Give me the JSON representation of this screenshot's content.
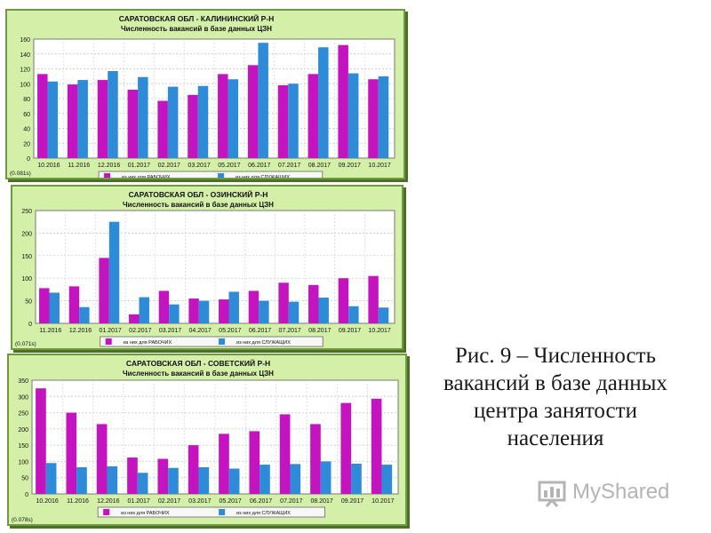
{
  "legend": {
    "series1": "из них для РАБОЧИХ",
    "series2": "из них для СЛУЖАЩИХ"
  },
  "caption": {
    "line1": "Рис. 9 – Численность",
    "line2": "вакансий в базе данных",
    "line3": "центра занятости",
    "line4": "населения"
  },
  "logo": {
    "text": "MyShared"
  },
  "colors": {
    "series1": "#c414c0",
    "series2": "#2e8bd8",
    "panel_bg": "#d4f0a8",
    "plot_bg": "#ffffff"
  },
  "chart_data": [
    {
      "type": "bar",
      "title": "САРАТОВСКАЯ ОБЛ - КАЛИНИНСКИЙ Р-Н",
      "subtitle": "Численность вакансий в базе данных ЦЗН",
      "categories": [
        "10.2016",
        "11.2016",
        "12.2016",
        "01.2017",
        "02.2017",
        "03.2017",
        "05.2017",
        "06.2017",
        "07.2017",
        "08.2017",
        "09.2017",
        "10.2017"
      ],
      "series": [
        {
          "name": "из них для РАБОЧИХ",
          "values": [
            113,
            99,
            105,
            92,
            77,
            85,
            113,
            125,
            98,
            113,
            152,
            106
          ]
        },
        {
          "name": "из них для СЛУЖАЩИХ",
          "values": [
            103,
            105,
            117,
            109,
            96,
            97,
            106,
            155,
            100,
            149,
            114,
            110
          ]
        }
      ],
      "ylim": [
        0,
        160
      ],
      "yticks": [
        0,
        20,
        40,
        60,
        80,
        100,
        120,
        140,
        160
      ],
      "footnote": "(0.081s)",
      "grid": true
    },
    {
      "type": "bar",
      "title": "САРАТОВСКАЯ ОБЛ - ОЗИНСКИЙ Р-Н",
      "subtitle": "Численность вакансий в базе данных ЦЗН",
      "categories": [
        "11.2016",
        "12.2016",
        "01.2017",
        "02.2017",
        "03.2017",
        "04.2017",
        "05.2017",
        "06.2017",
        "07.2017",
        "08.2017",
        "09.2017",
        "10.2017"
      ],
      "series": [
        {
          "name": "из них для РАБОЧИХ",
          "values": [
            78,
            82,
            145,
            20,
            72,
            55,
            53,
            72,
            90,
            85,
            100,
            105
          ]
        },
        {
          "name": "из них для СЛУЖАЩИХ",
          "values": [
            68,
            36,
            225,
            58,
            42,
            50,
            70,
            50,
            48,
            57,
            38,
            35
          ]
        }
      ],
      "ylim": [
        0,
        250
      ],
      "yticks": [
        0,
        50,
        100,
        150,
        200,
        250
      ],
      "footnote": "(0.071s)",
      "grid": true
    },
    {
      "type": "bar",
      "title": "САРАТОВСКАЯ ОБЛ - СОВЕТСКИЙ Р-Н",
      "subtitle": "Численность вакансий в базе данных ЦЗН",
      "categories": [
        "10.2016",
        "11.2016",
        "12.2016",
        "01.2017",
        "02.2017",
        "03.2017",
        "05.2017",
        "06.2017",
        "07.2017",
        "08.2017",
        "09.2017",
        "10.2017"
      ],
      "series": [
        {
          "name": "из них для РАБОЧИХ",
          "values": [
            325,
            250,
            215,
            112,
            108,
            150,
            185,
            193,
            245,
            215,
            280,
            293
          ]
        },
        {
          "name": "из них для СЛУЖАЩИХ",
          "values": [
            95,
            82,
            85,
            65,
            80,
            82,
            78,
            90,
            92,
            100,
            93,
            90
          ]
        }
      ],
      "ylim": [
        0,
        350
      ],
      "yticks": [
        0,
        50,
        100,
        150,
        200,
        250,
        300,
        350
      ],
      "footnote": "(0.078s)",
      "grid": true
    }
  ]
}
